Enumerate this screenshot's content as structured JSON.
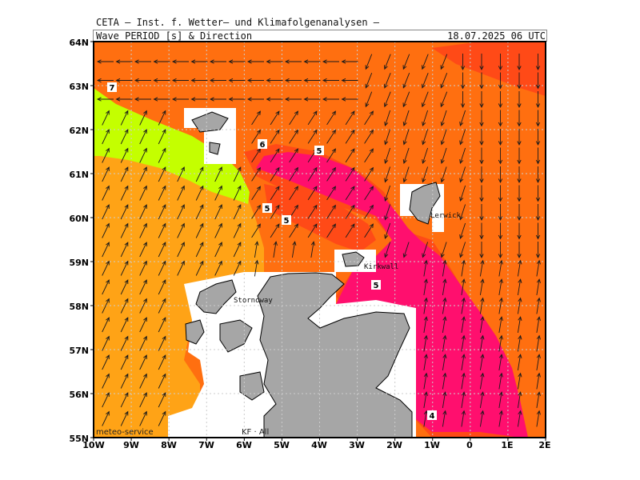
{
  "header": {
    "title": "CETA – Inst. f. Wetter– und Klimafolgenanalysen –",
    "subtitle": "Wave_PERIOD_[s]_&_Direction",
    "valid_time": "18.07.2025 06 UTC"
  },
  "axes": {
    "lat_labels": [
      "64N",
      "63N",
      "62N",
      "61N",
      "60N",
      "59N",
      "58N",
      "57N",
      "56N",
      "55N"
    ],
    "lon_labels": [
      "10W",
      "9W",
      "8W",
      "7W",
      "6W",
      "5W",
      "4W",
      "3W",
      "2W",
      "1W",
      "0",
      "1E",
      "2E"
    ]
  },
  "contour_labels": [
    "7",
    "6",
    "5",
    "5",
    "5",
    "5",
    "4"
  ],
  "places": [
    "Stornoway",
    "Kirkwall",
    "Lerwick"
  ],
  "footer": "meteo-service",
  "footer2": "KF · All",
  "colors": {
    "period_4_5": "#ff0f6e",
    "period_5_6": "#ff4a17",
    "period_6_7": "#ff6f10",
    "period_7_8": "#ffa316",
    "period_8_9": "#c4ff00",
    "land": "#a6a6a6",
    "grid": "#cccccc"
  }
}
